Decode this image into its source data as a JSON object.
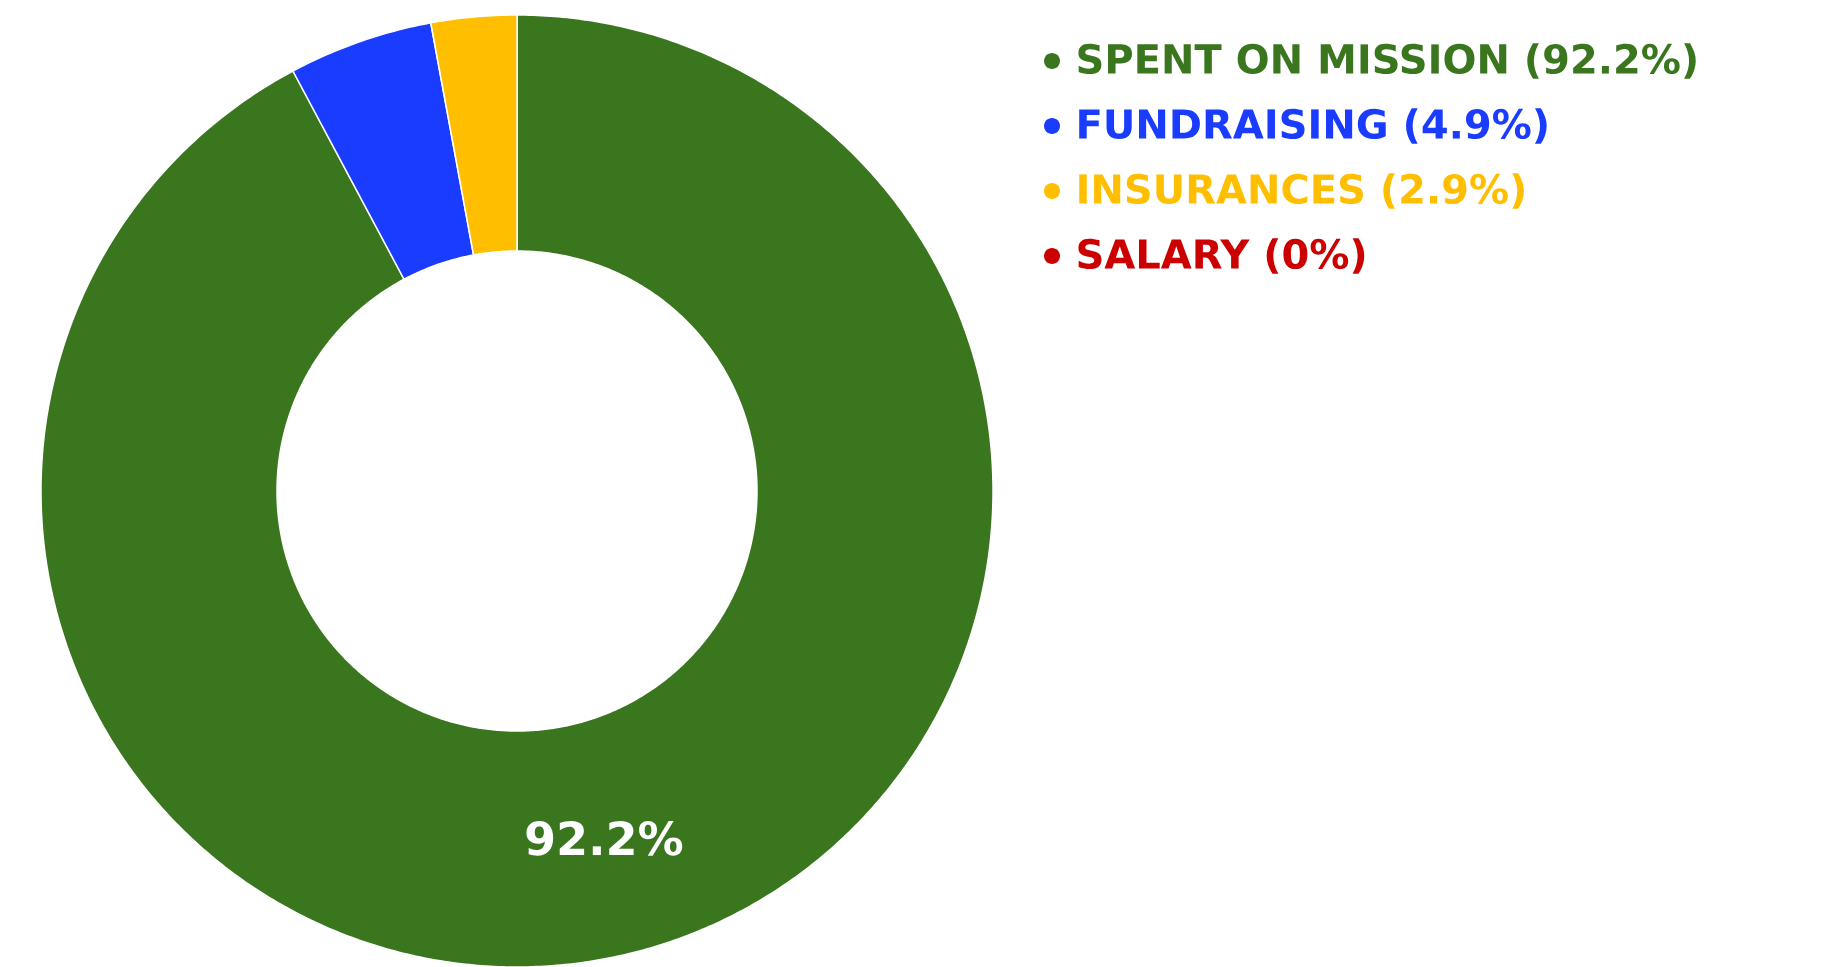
{
  "chart_data": {
    "type": "donut",
    "categories": [
      "SPENT ON MISSION (92.2%)",
      "FUNDRAISING (4.9%)",
      "INSURANCES (2.9%)",
      "SALARY (0%)"
    ],
    "values": [
      92.2,
      4.9,
      2.9,
      0
    ],
    "colors": [
      "#3a761e",
      "#1a3cff",
      "#ffbf00",
      "#cc0000"
    ],
    "value_labels": [
      "92.2%",
      null,
      null,
      null
    ],
    "legend": "top right"
  }
}
